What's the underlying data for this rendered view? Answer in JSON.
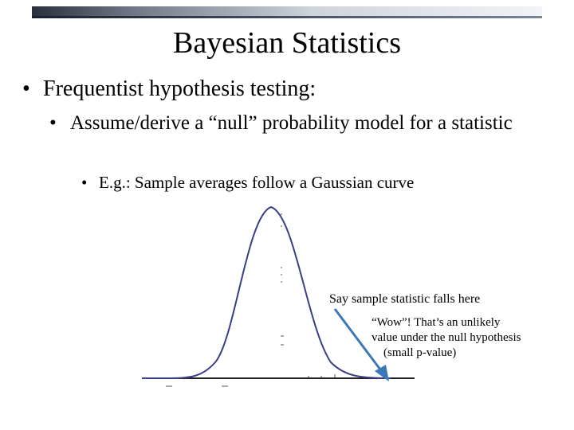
{
  "slide": {
    "title": "Bayesian Statistics",
    "bullet_glyph": "•",
    "bullets": [
      {
        "text": "Frequentist hypothesis testing:"
      },
      {
        "text": "Assume/derive a “null” probability model for a statistic"
      },
      {
        "text": "E.g.: Sample averages follow a Gaussian curve"
      }
    ]
  },
  "annotations": {
    "statistic_label": "Say sample statistic falls here",
    "wow_line1": "“Wow”! That’s an unlikely",
    "wow_line2": "value under the null hypothesis",
    "wow_line3": "(small p-value)"
  },
  "colors": {
    "curve": "#3b3f87",
    "arrow": "#3a78b8",
    "baseline": "#222222"
  }
}
